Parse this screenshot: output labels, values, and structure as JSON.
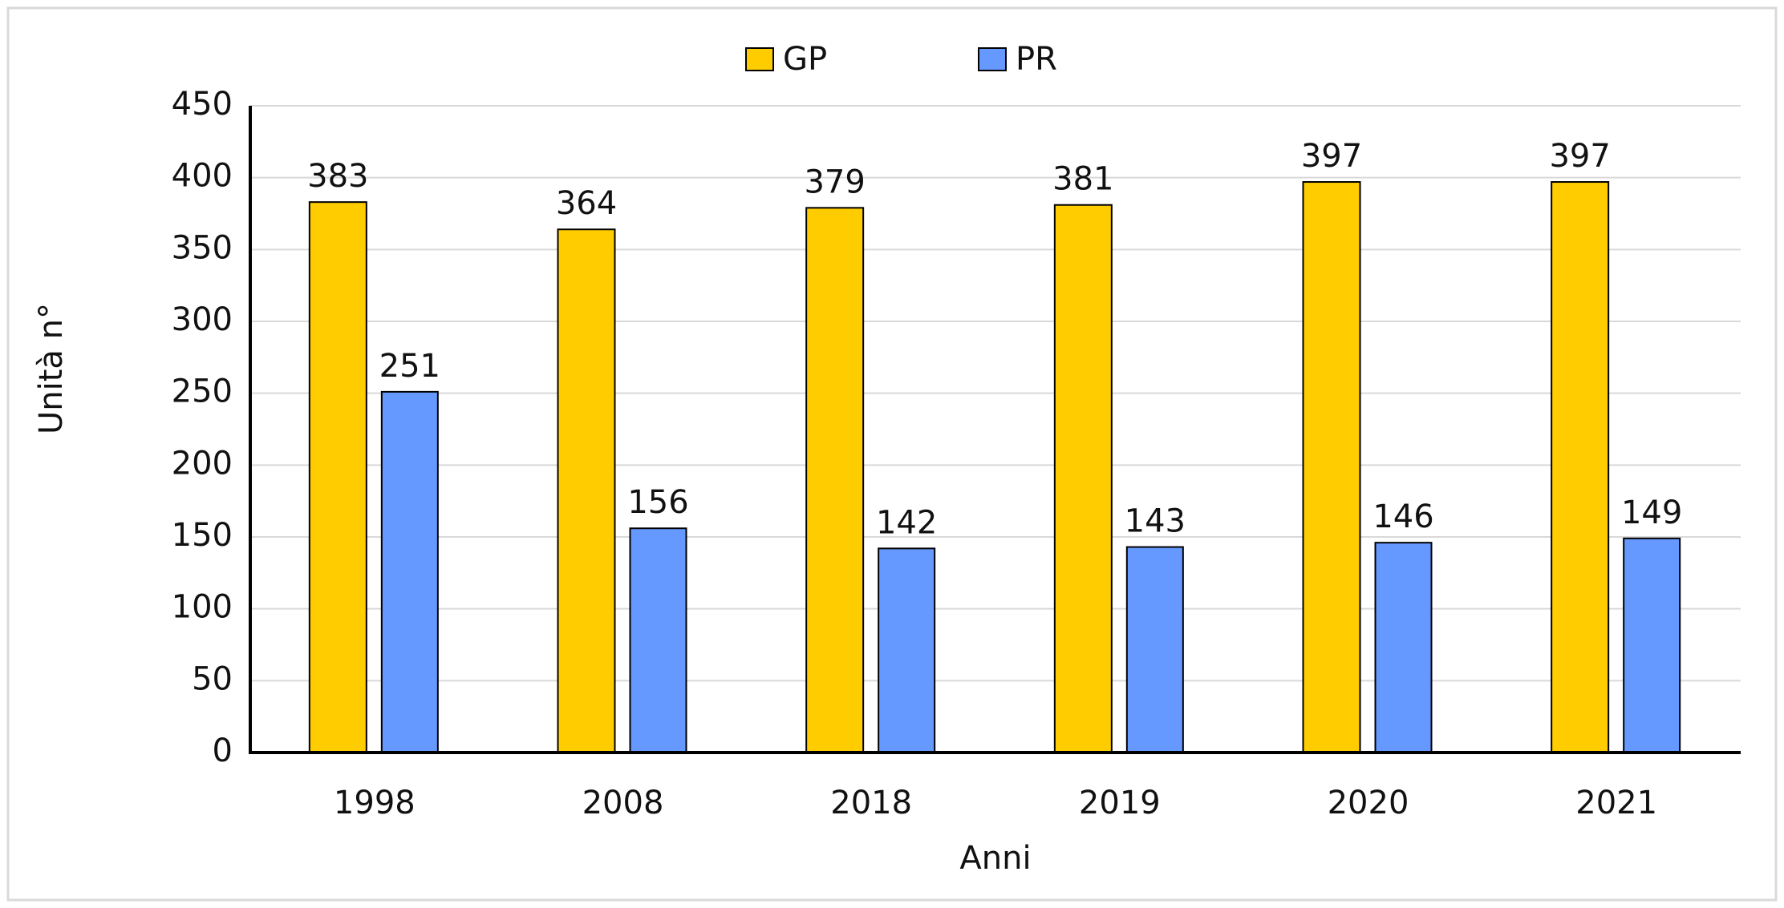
{
  "chart_data": {
    "type": "bar",
    "x_label": "Anni",
    "y_label": "Unità n°",
    "categories": [
      "1998",
      "2008",
      "2018",
      "2019",
      "2020",
      "2021"
    ],
    "series": [
      {
        "name": "GP",
        "color": "#ffcc00",
        "values": [
          383,
          364,
          379,
          381,
          397,
          397
        ]
      },
      {
        "name": "PR",
        "color": "#6699ff",
        "values": [
          251,
          156,
          142,
          143,
          146,
          149
        ]
      }
    ],
    "ylim": [
      0,
      450
    ],
    "yticks": [
      0,
      50,
      100,
      150,
      200,
      250,
      300,
      350,
      400,
      450
    ],
    "grid": true,
    "legend": "top"
  }
}
